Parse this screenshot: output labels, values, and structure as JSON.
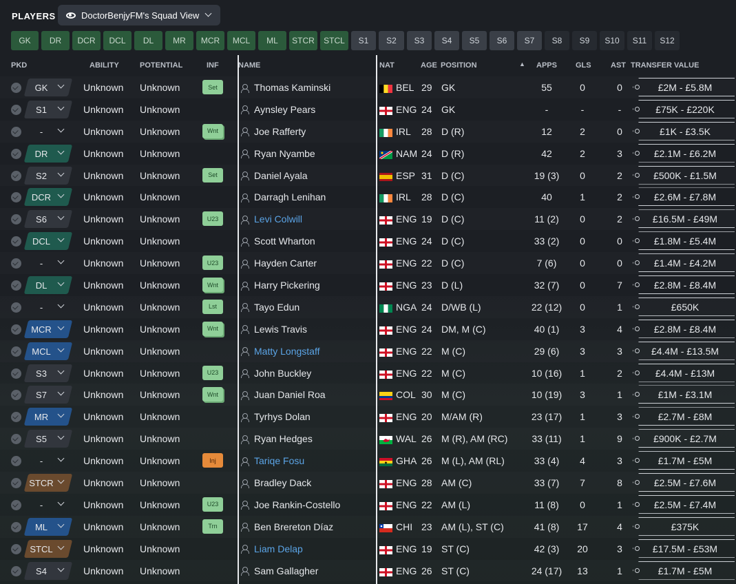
{
  "header": {
    "title": "PLAYERS",
    "view_name": "DoctorBenjyFM's Squad View"
  },
  "position_filters": [
    {
      "label": "GK",
      "style": "g",
      "w": 40
    },
    {
      "label": "DR",
      "style": "g",
      "w": 41
    },
    {
      "label": "DCR",
      "style": "g",
      "w": 41
    },
    {
      "label": "DCL",
      "style": "g",
      "w": 41
    },
    {
      "label": "DL",
      "style": "g",
      "w": 41
    },
    {
      "label": "MR",
      "style": "g",
      "w": 41
    },
    {
      "label": "MCR",
      "style": "g",
      "w": 41
    },
    {
      "label": "MCL",
      "style": "g",
      "w": 41
    },
    {
      "label": "ML",
      "style": "g",
      "w": 41
    },
    {
      "label": "STCR",
      "style": "g",
      "w": 41
    },
    {
      "label": "STCL",
      "style": "g",
      "w": 41
    },
    {
      "label": "S1",
      "style": "s",
      "w": 36
    },
    {
      "label": "S2",
      "style": "s",
      "w": 37
    },
    {
      "label": "S3",
      "style": "s",
      "w": 36
    },
    {
      "label": "S4",
      "style": "s",
      "w": 36
    },
    {
      "label": "S5",
      "style": "s",
      "w": 36
    },
    {
      "label": "S6",
      "style": "s",
      "w": 36
    },
    {
      "label": "S7",
      "style": "s",
      "w": 36
    },
    {
      "label": "S8",
      "style": "d",
      "w": 36
    },
    {
      "label": "S9",
      "style": "d",
      "w": 36
    },
    {
      "label": "S10",
      "style": "d",
      "w": 36
    },
    {
      "label": "S11",
      "style": "d",
      "w": 36
    },
    {
      "label": "S12",
      "style": "d",
      "w": 36
    }
  ],
  "columns": {
    "pkd": "PKD",
    "ability": "ABILITY",
    "potential": "POTENTIAL",
    "inf": "INF",
    "name": "NAME",
    "nat": "NAT",
    "age": "AGE",
    "position": "POSITION",
    "apps": "APPS",
    "gls": "GLS",
    "ast": "AST",
    "transfer_value": "TRANSFER VALUE"
  },
  "players": [
    {
      "pos": "GK",
      "pos_color": "dark",
      "ability": "Unknown",
      "potential": "Unknown",
      "inf": "Set",
      "name": "Thomas Kaminski",
      "link": false,
      "flag": "BEL",
      "nat": "BEL",
      "age": "29",
      "position": "GK",
      "apps": "55",
      "gls": "0",
      "ast": "0",
      "value": "£2M - £5.8M"
    },
    {
      "pos": "S1",
      "pos_color": "dark",
      "ability": "Unknown",
      "potential": "Unknown",
      "inf": "",
      "name": "Aynsley Pears",
      "link": false,
      "flag": "ENG",
      "nat": "ENG",
      "age": "24",
      "position": "GK",
      "apps": "-",
      "gls": "-",
      "ast": "-",
      "value": "£75K - £220K"
    },
    {
      "pos": "-",
      "pos_color": "none",
      "ability": "Unknown",
      "potential": "Unknown",
      "inf": "Wnt",
      "name": "Joe Rafferty",
      "link": false,
      "flag": "IRL",
      "nat": "IRL",
      "age": "28",
      "position": "D (R)",
      "apps": "12",
      "gls": "2",
      "ast": "0",
      "value": "£1K - £3.5K"
    },
    {
      "pos": "DR",
      "pos_color": "green",
      "ability": "Unknown",
      "potential": "Unknown",
      "inf": "",
      "name": "Ryan Nyambe",
      "link": false,
      "flag": "NAM",
      "nat": "NAM",
      "age": "24",
      "position": "D (R)",
      "apps": "42",
      "gls": "2",
      "ast": "3",
      "value": "£2.1M - £6.2M"
    },
    {
      "pos": "S2",
      "pos_color": "dark",
      "ability": "Unknown",
      "potential": "Unknown",
      "inf": "Set",
      "name": "Daniel Ayala",
      "link": false,
      "flag": "ESP",
      "nat": "ESP",
      "age": "31",
      "position": "D (C)",
      "apps": "19 (3)",
      "gls": "0",
      "ast": "2",
      "value": "£500K - £1.5M"
    },
    {
      "pos": "DCR",
      "pos_color": "green",
      "ability": "Unknown",
      "potential": "Unknown",
      "inf": "",
      "name": "Darragh Lenihan",
      "link": false,
      "flag": "IRL",
      "nat": "IRL",
      "age": "28",
      "position": "D (C)",
      "apps": "40",
      "gls": "1",
      "ast": "2",
      "value": "£2.6M - £7.8M"
    },
    {
      "pos": "S6",
      "pos_color": "dark",
      "ability": "Unknown",
      "potential": "Unknown",
      "inf": "U23",
      "name": "Levi Colwill",
      "link": true,
      "flag": "ENG",
      "nat": "ENG",
      "age": "19",
      "position": "D (C)",
      "apps": "11 (2)",
      "gls": "0",
      "ast": "2",
      "value": "£16.5M - £49M"
    },
    {
      "pos": "DCL",
      "pos_color": "green",
      "ability": "Unknown",
      "potential": "Unknown",
      "inf": "",
      "name": "Scott Wharton",
      "link": false,
      "flag": "ENG",
      "nat": "ENG",
      "age": "24",
      "position": "D (C)",
      "apps": "33 (2)",
      "gls": "0",
      "ast": "0",
      "value": "£1.8M - £5.4M"
    },
    {
      "pos": "-",
      "pos_color": "none",
      "ability": "Unknown",
      "potential": "Unknown",
      "inf": "U23",
      "name": "Hayden Carter",
      "link": false,
      "flag": "ENG",
      "nat": "ENG",
      "age": "22",
      "position": "D (C)",
      "apps": "7 (6)",
      "gls": "0",
      "ast": "0",
      "value": "£1.4M - £4.2M"
    },
    {
      "pos": "DL",
      "pos_color": "green",
      "ability": "Unknown",
      "potential": "Unknown",
      "inf": "Wnt",
      "name": "Harry Pickering",
      "link": false,
      "flag": "ENG",
      "nat": "ENG",
      "age": "23",
      "position": "D (L)",
      "apps": "32 (7)",
      "gls": "0",
      "ast": "7",
      "value": "£2.8M - £8.4M"
    },
    {
      "pos": "-",
      "pos_color": "none",
      "ability": "Unknown",
      "potential": "Unknown",
      "inf": "Lst",
      "name": "Tayo Edun",
      "link": false,
      "flag": "NGA",
      "nat": "NGA",
      "age": "24",
      "position": "D/WB (L)",
      "apps": "22 (12)",
      "gls": "0",
      "ast": "1",
      "value": "£650K"
    },
    {
      "pos": "MCR",
      "pos_color": "blue",
      "ability": "Unknown",
      "potential": "Unknown",
      "inf": "Wnt",
      "name": "Lewis Travis",
      "link": false,
      "flag": "ENG",
      "nat": "ENG",
      "age": "24",
      "position": "DM, M (C)",
      "apps": "40 (1)",
      "gls": "3",
      "ast": "4",
      "value": "£2.8M - £8.4M"
    },
    {
      "pos": "MCL",
      "pos_color": "blue",
      "ability": "Unknown",
      "potential": "Unknown",
      "inf": "",
      "name": "Matty Longstaff",
      "link": true,
      "flag": "ENG",
      "nat": "ENG",
      "age": "22",
      "position": "M (C)",
      "apps": "29 (6)",
      "gls": "3",
      "ast": "3",
      "value": "£4.4M - £13.5M"
    },
    {
      "pos": "S3",
      "pos_color": "dark",
      "ability": "Unknown",
      "potential": "Unknown",
      "inf": "U23",
      "name": "John Buckley",
      "link": false,
      "flag": "ENG",
      "nat": "ENG",
      "age": "22",
      "position": "M (C)",
      "apps": "10 (16)",
      "gls": "1",
      "ast": "2",
      "value": "£4.4M - £13M"
    },
    {
      "pos": "S7",
      "pos_color": "dark",
      "ability": "Unknown",
      "potential": "Unknown",
      "inf": "Wnt",
      "name": "Juan Daniel Roa",
      "link": false,
      "flag": "COL",
      "nat": "COL",
      "age": "30",
      "position": "M (C)",
      "apps": "10 (19)",
      "gls": "3",
      "ast": "1",
      "value": "£1M - £3.1M"
    },
    {
      "pos": "MR",
      "pos_color": "blue",
      "ability": "Unknown",
      "potential": "Unknown",
      "inf": "",
      "name": "Tyrhys Dolan",
      "link": false,
      "flag": "ENG",
      "nat": "ENG",
      "age": "20",
      "position": "M/AM (R)",
      "apps": "23 (17)",
      "gls": "1",
      "ast": "3",
      "value": "£2.7M - £8M"
    },
    {
      "pos": "S5",
      "pos_color": "dark",
      "ability": "Unknown",
      "potential": "Unknown",
      "inf": "",
      "name": "Ryan Hedges",
      "link": false,
      "flag": "WAL",
      "nat": "WAL",
      "age": "26",
      "position": "M (R), AM (RC)",
      "apps": "33 (11)",
      "gls": "1",
      "ast": "9",
      "value": "£900K - £2.7M"
    },
    {
      "pos": "-",
      "pos_color": "none",
      "ability": "Unknown",
      "potential": "Unknown",
      "inf": "Inj",
      "name": "Tariqe Fosu",
      "link": true,
      "flag": "GHA",
      "nat": "GHA",
      "age": "26",
      "position": "M (L), AM (RL)",
      "apps": "33 (4)",
      "gls": "4",
      "ast": "3",
      "value": "£1.7M - £5M"
    },
    {
      "pos": "STCR",
      "pos_color": "brown",
      "ability": "Unknown",
      "potential": "Unknown",
      "inf": "",
      "name": "Bradley Dack",
      "link": false,
      "flag": "ENG",
      "nat": "ENG",
      "age": "28",
      "position": "AM (C)",
      "apps": "33 (7)",
      "gls": "7",
      "ast": "8",
      "value": "£2.5M - £7.6M"
    },
    {
      "pos": "-",
      "pos_color": "none",
      "ability": "Unknown",
      "potential": "Unknown",
      "inf": "U23",
      "name": "Joe Rankin-Costello",
      "link": false,
      "flag": "ENG",
      "nat": "ENG",
      "age": "22",
      "position": "AM (L)",
      "apps": "11 (8)",
      "gls": "0",
      "ast": "1",
      "value": "£2.5M - £7.4M"
    },
    {
      "pos": "ML",
      "pos_color": "blue",
      "ability": "Unknown",
      "potential": "Unknown",
      "inf": "Trn",
      "name": "Ben Brereton Díaz",
      "link": false,
      "flag": "CHI",
      "nat": "CHI",
      "age": "23",
      "position": "AM (L), ST (C)",
      "apps": "41 (8)",
      "gls": "17",
      "ast": "4",
      "value": "£375K"
    },
    {
      "pos": "STCL",
      "pos_color": "brown",
      "ability": "Unknown",
      "potential": "Unknown",
      "inf": "",
      "name": "Liam Delap",
      "link": true,
      "flag": "ENG",
      "nat": "ENG",
      "age": "19",
      "position": "ST (C)",
      "apps": "42 (3)",
      "gls": "20",
      "ast": "3",
      "value": "£17.5M - £53M"
    },
    {
      "pos": "S4",
      "pos_color": "dark",
      "ability": "Unknown",
      "potential": "Unknown",
      "inf": "",
      "name": "Sam Gallagher",
      "link": false,
      "flag": "ENG",
      "nat": "ENG",
      "age": "26",
      "position": "ST (C)",
      "apps": "24 (17)",
      "gls": "13",
      "ast": "1",
      "value": "£1.7M - £5M"
    }
  ]
}
